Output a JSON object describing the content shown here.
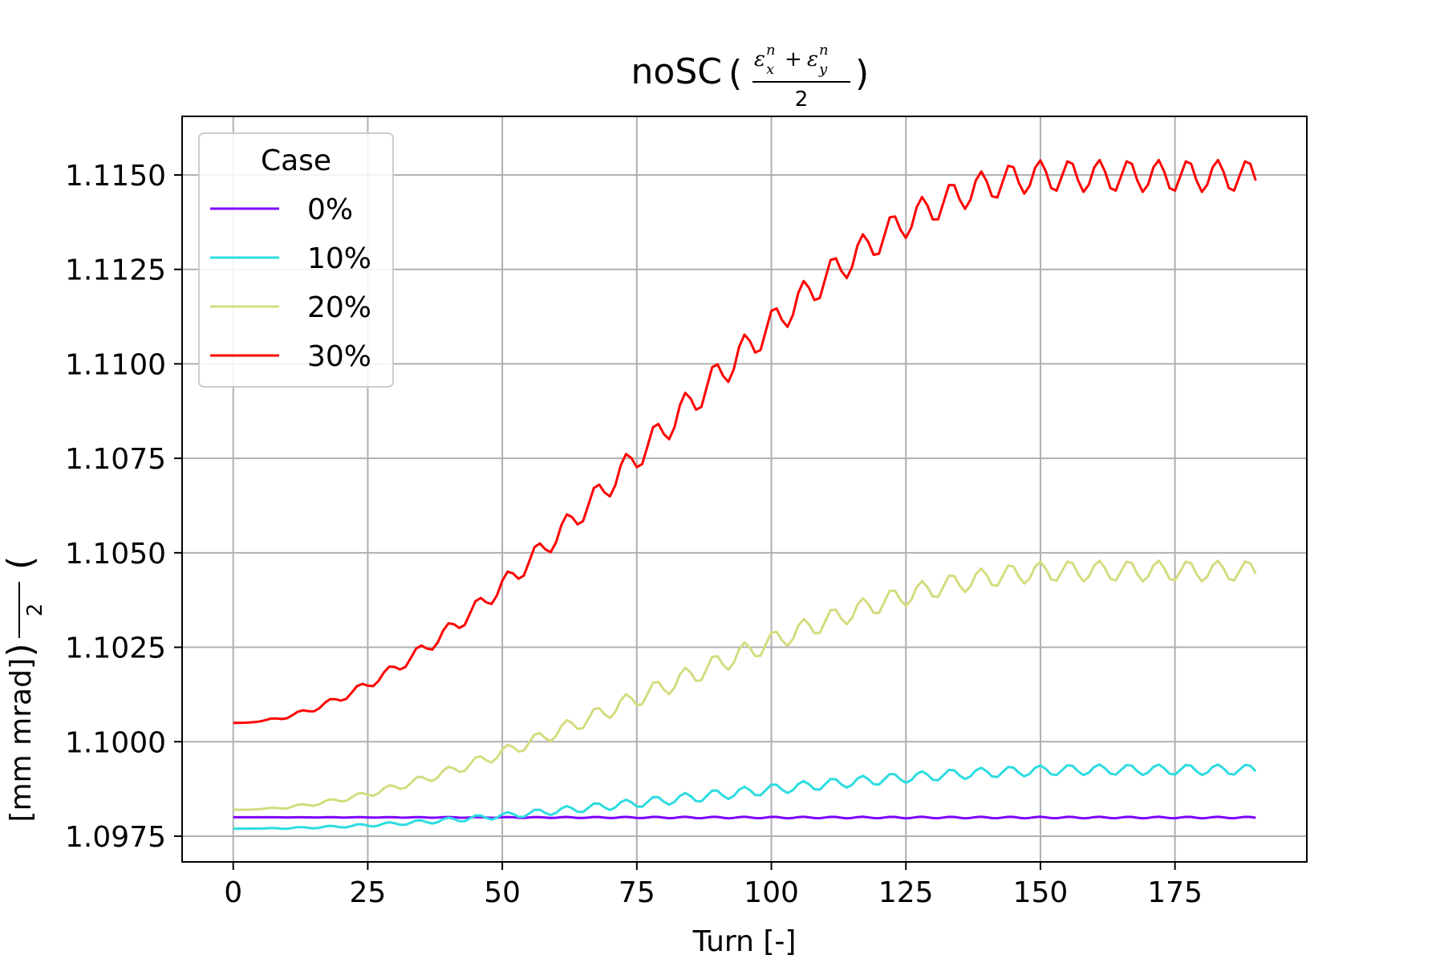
{
  "chart_data": {
    "type": "line",
    "title": {
      "prefix": "noSC",
      "eps": "ε",
      "sup": "n",
      "sub_x": "x",
      "sub_y": "y",
      "plus": "+",
      "denominator": "2"
    },
    "xlabel": "Turn [-]",
    "ylabel": {
      "denominator": "2",
      "unit": "[mm mrad]"
    },
    "xlim": [
      -9.5,
      199.5
    ],
    "ylim": [
      1.09682,
      1.11655
    ],
    "x_ticks": [
      0,
      25,
      50,
      75,
      100,
      125,
      150,
      175
    ],
    "y_ticks": [
      1.0975,
      1.1,
      1.1025,
      1.105,
      1.1075,
      1.11,
      1.1125,
      1.115
    ],
    "y_tick_labels": [
      "1.0975",
      "1.1000",
      "1.1025",
      "1.1050",
      "1.1075",
      "1.1100",
      "1.1125",
      "1.1150"
    ],
    "grid": true,
    "legend": {
      "title": "Case",
      "position": "top-left"
    },
    "x_max": 190,
    "series": [
      {
        "name": "0%",
        "color": "#7f00ff",
        "start": 1.098,
        "end": 1.098,
        "oscillation": 4e-05,
        "saturation": 1.0
      },
      {
        "name": "10%",
        "color": "#2ddce0",
        "start": 1.0977,
        "end": 1.0993,
        "oscillation": 0.00028,
        "saturation": 0.85
      },
      {
        "name": "20%",
        "color": "#d4dc7f",
        "start": 1.0982,
        "end": 1.1046,
        "oscillation": 0.00055,
        "saturation": 0.82
      },
      {
        "name": "30%",
        "color": "#ff0000",
        "start": 1.1005,
        "end": 1.1151,
        "oscillation": 0.00085,
        "saturation": 0.8
      }
    ]
  }
}
